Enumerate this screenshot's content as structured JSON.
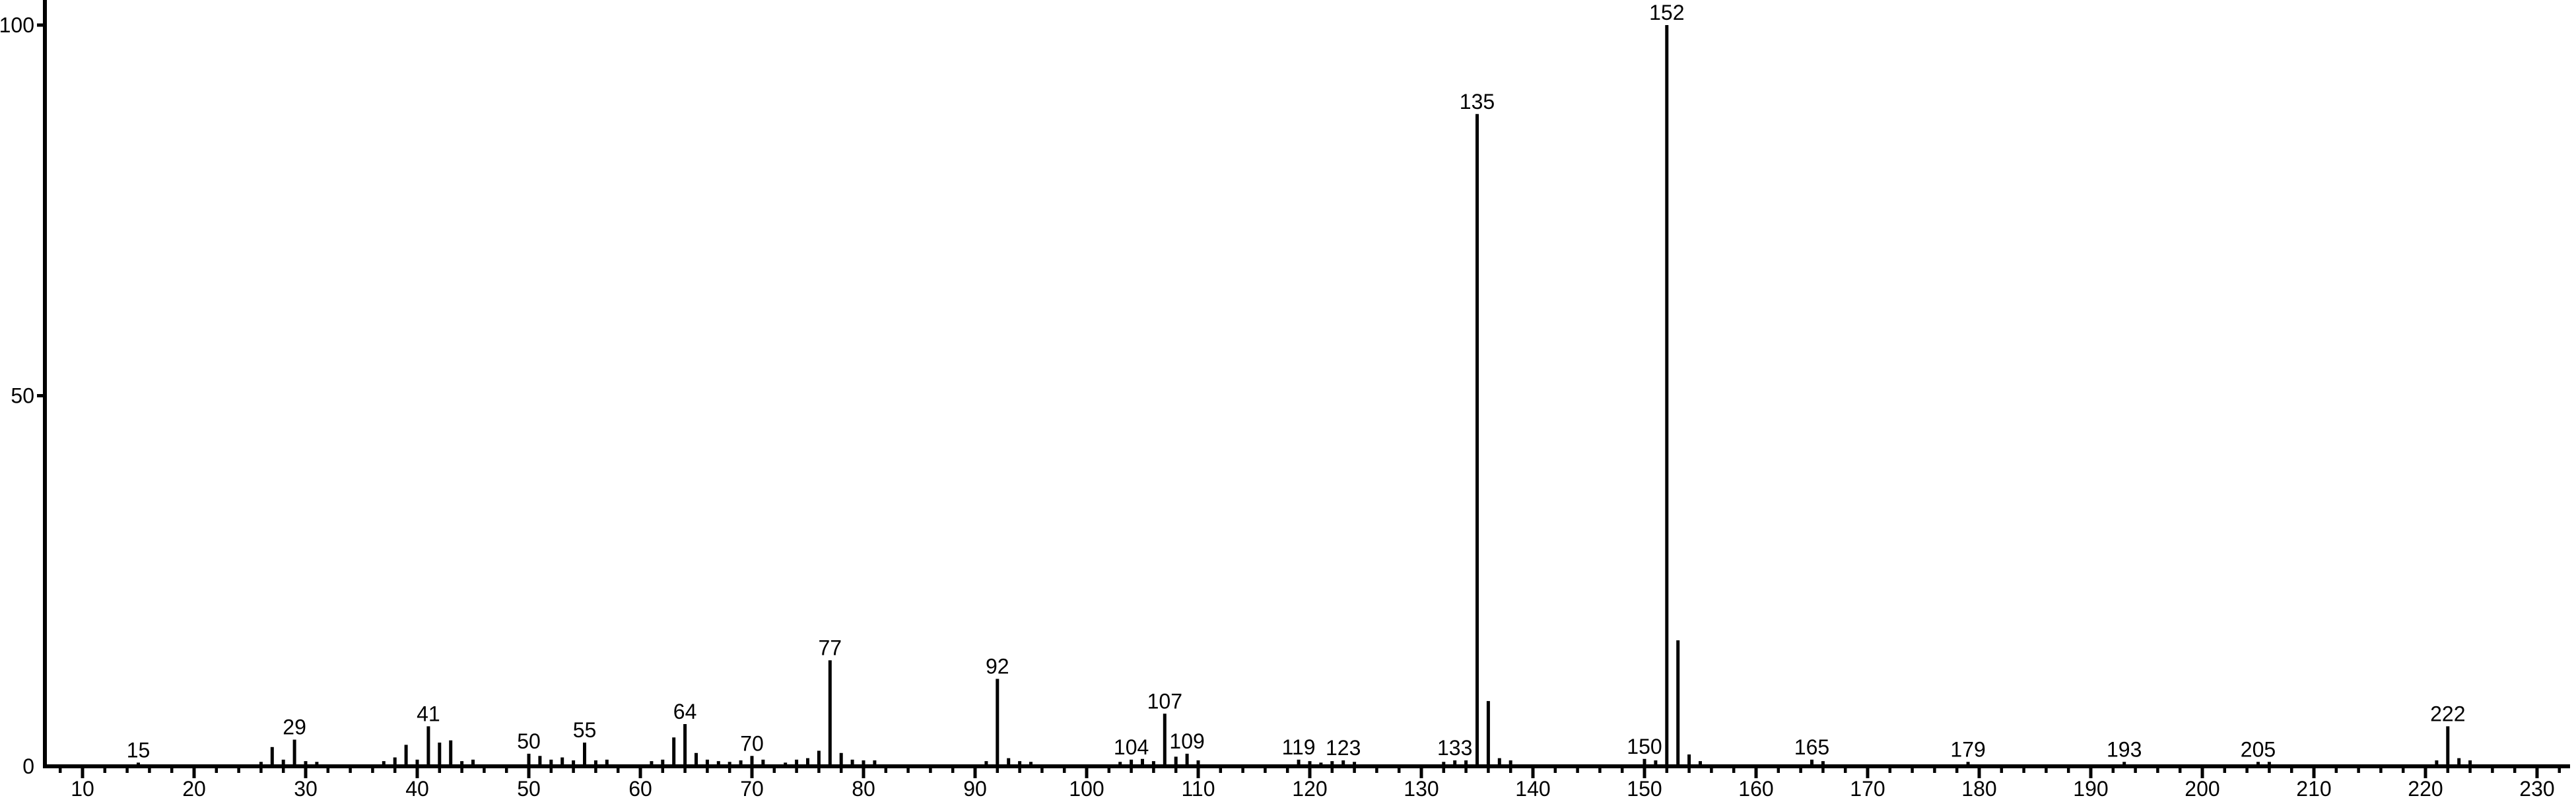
{
  "figure": {
    "background": "#ffffff",
    "foreground": "#000000"
  },
  "chart_data": {
    "type": "bar",
    "subtype": "mass_spectrum_stick_plot",
    "title": "",
    "xlabel": "",
    "ylabel": "",
    "xlim": [
      6.6,
      233.6
    ],
    "ylim": [
      0,
      100
    ],
    "grid": false,
    "legend": "none",
    "x_major_ticks": [
      10,
      20,
      30,
      40,
      50,
      60,
      70,
      80,
      90,
      100,
      110,
      120,
      130,
      140,
      150,
      160,
      170,
      180,
      190,
      200,
      210,
      220,
      230
    ],
    "x_major_tick_labels": [
      "10",
      "20",
      "30",
      "40",
      "50",
      "60",
      "70",
      "80",
      "90",
      "100",
      "110",
      "120",
      "130",
      "140",
      "150",
      "160",
      "170",
      "180",
      "190",
      "200",
      "210",
      "220",
      "230"
    ],
    "x_minor_tick_step": 2,
    "x_minor_tick_range": [
      8,
      232
    ],
    "y_ticks": [
      0,
      50,
      100
    ],
    "y_tick_labels": [
      "0",
      "50",
      "100"
    ],
    "series_name": "relative intensity (%)",
    "peaks": [
      [
        15,
        0.5
      ],
      [
        26,
        0.6
      ],
      [
        27,
        2.6
      ],
      [
        28,
        0.9
      ],
      [
        29,
        3.6
      ],
      [
        30,
        0.7
      ],
      [
        31,
        0.6
      ],
      [
        37,
        0.7
      ],
      [
        38,
        1.2
      ],
      [
        39,
        2.9
      ],
      [
        40,
        0.9
      ],
      [
        41,
        5.4
      ],
      [
        42,
        3.2
      ],
      [
        43,
        3.5
      ],
      [
        44,
        0.7
      ],
      [
        45,
        0.9
      ],
      [
        50,
        1.7
      ],
      [
        51,
        1.4
      ],
      [
        52,
        0.9
      ],
      [
        53,
        1.2
      ],
      [
        54,
        0.8
      ],
      [
        55,
        3.2
      ],
      [
        56,
        0.8
      ],
      [
        57,
        0.9
      ],
      [
        61,
        0.7
      ],
      [
        62,
        0.9
      ],
      [
        63,
        3.9
      ],
      [
        64,
        5.7
      ],
      [
        65,
        1.8
      ],
      [
        66,
        0.9
      ],
      [
        67,
        0.7
      ],
      [
        68,
        0.6
      ],
      [
        69,
        0.8
      ],
      [
        70,
        1.4
      ],
      [
        71,
        0.9
      ],
      [
        73,
        0.5
      ],
      [
        74,
        0.9
      ],
      [
        75,
        1.1
      ],
      [
        76,
        2.1
      ],
      [
        77,
        14.3
      ],
      [
        78,
        1.8
      ],
      [
        79,
        0.9
      ],
      [
        80,
        0.8
      ],
      [
        81,
        0.8
      ],
      [
        91,
        0.7
      ],
      [
        92,
        11.8
      ],
      [
        93,
        1.1
      ],
      [
        94,
        0.7
      ],
      [
        95,
        0.6
      ],
      [
        103,
        0.6
      ],
      [
        104,
        0.9
      ],
      [
        105,
        1.0
      ],
      [
        106,
        0.7
      ],
      [
        107,
        7.1
      ],
      [
        108,
        1.3
      ],
      [
        109,
        1.7
      ],
      [
        110,
        0.8
      ],
      [
        119,
        0.9
      ],
      [
        120,
        0.7
      ],
      [
        121,
        0.5
      ],
      [
        122,
        0.7
      ],
      [
        123,
        0.8
      ],
      [
        124,
        0.6
      ],
      [
        132,
        0.6
      ],
      [
        133,
        0.8
      ],
      [
        134,
        0.8
      ],
      [
        135,
        88
      ],
      [
        136,
        8.8
      ],
      [
        137,
        1.1
      ],
      [
        138,
        0.8
      ],
      [
        150,
        1.0
      ],
      [
        151,
        0.8
      ],
      [
        152,
        100
      ],
      [
        153,
        17
      ],
      [
        154,
        1.6
      ],
      [
        155,
        0.7
      ],
      [
        165,
        0.9
      ],
      [
        166,
        0.7
      ],
      [
        179,
        0.6
      ],
      [
        193,
        0.6
      ],
      [
        205,
        0.6
      ],
      [
        206,
        0.6
      ],
      [
        221,
        0.8
      ],
      [
        222,
        5.4
      ],
      [
        223,
        1.1
      ],
      [
        224,
        0.8
      ]
    ],
    "labeled_peaks": [
      15,
      29,
      41,
      50,
      55,
      64,
      70,
      77,
      92,
      104,
      107,
      109,
      119,
      123,
      133,
      135,
      150,
      152,
      165,
      179,
      193,
      205,
      222
    ],
    "colors": {
      "line": "#000000",
      "text": "#000000",
      "background": "#ffffff"
    }
  }
}
